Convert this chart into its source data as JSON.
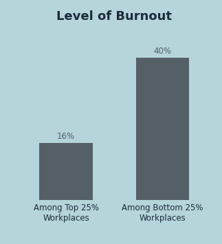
{
  "title": "Level of Burnout",
  "categories": [
    "Among Top 25%\nWorkplaces",
    "Among Bottom 25%\nWorkplaces"
  ],
  "values": [
    16,
    40
  ],
  "bar_color": "#555f66",
  "label_color": "#555f66",
  "title_color": "#1c2b3a",
  "background_color": "#b5d5da",
  "bar_width": 0.55,
  "ylim": [
    0,
    48
  ],
  "value_labels": [
    "16%",
    "40%"
  ],
  "title_fontsize": 13,
  "label_fontsize": 8.5,
  "value_fontsize": 8.5,
  "xlim": [
    -0.5,
    1.5
  ]
}
